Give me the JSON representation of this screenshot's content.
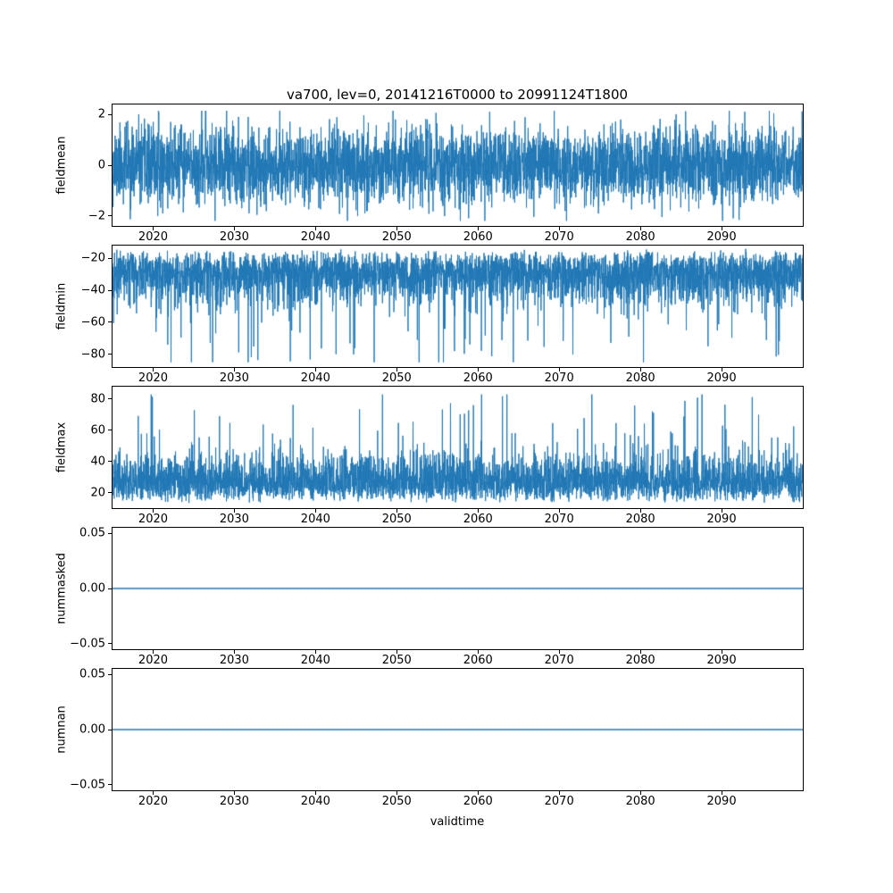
{
  "figure": {
    "title": "va700, lev=0, 20141216T0000 to 20991124T1800",
    "background": "#ffffff"
  },
  "chart_data": {
    "type": "line",
    "title": "va700, lev=0, 20141216T0000 to 20991124T1800",
    "xlabel": "validtime",
    "line_color": "#1f77b4",
    "grid": false,
    "legend": "none",
    "x": {
      "xlim": [
        2015,
        2100
      ],
      "xticks": [
        2020,
        2030,
        2040,
        2050,
        2060,
        2070,
        2080,
        2090
      ],
      "tick_decimals": 0,
      "time_span": "20141216T0000 to 20991124T1800"
    },
    "subplots": [
      {
        "name": "fieldmean",
        "ylabel": "fieldmean",
        "ylim": [
          -2.4,
          2.4
        ],
        "yticks": [
          2,
          0,
          -2
        ],
        "tick_decimals": 0,
        "series": {
          "kind": "noise",
          "seed": 11,
          "n": 4000,
          "base": 0,
          "uniform": 0,
          "tail": 0.75,
          "sign": 1,
          "two_sided": true,
          "spike_p": 0,
          "spike": [
            0,
            0
          ],
          "clip": [
            -2.2,
            2.15
          ]
        },
        "summary": {
          "typical_band": [
            -1.5,
            1.5
          ],
          "observed_min": -2.2,
          "observed_max": 2.15
        }
      },
      {
        "name": "fieldmin",
        "ylabel": "fieldmin",
        "ylim": [
          -88,
          -12
        ],
        "yticks": [
          -20,
          -40,
          -60,
          -80
        ],
        "tick_decimals": 0,
        "series": {
          "kind": "noise",
          "seed": 22,
          "n": 4000,
          "base": -14,
          "uniform": 12,
          "tail": 13,
          "sign": -1,
          "two_sided": false,
          "spike_p": 0.012,
          "spike": [
            30,
            60
          ],
          "clip": [
            -85,
            -13
          ]
        },
        "summary": {
          "typical_band": [
            -60,
            -14
          ],
          "observed_min": -84,
          "observed_max": -13
        }
      },
      {
        "name": "fieldmax",
        "ylabel": "fieldmax",
        "ylim": [
          10,
          88
        ],
        "yticks": [
          80,
          60,
          40,
          20
        ],
        "tick_decimals": 0,
        "series": {
          "kind": "noise",
          "seed": 33,
          "n": 4000,
          "base": 13,
          "uniform": 12,
          "tail": 11,
          "sign": 1,
          "two_sided": false,
          "spike_p": 0.015,
          "spike": [
            25,
            55
          ],
          "clip": [
            12,
            83
          ]
        },
        "summary": {
          "typical_band": [
            13,
            55
          ],
          "observed_min": 12,
          "observed_max": 83
        }
      },
      {
        "name": "nummasked",
        "ylabel": "nummasked",
        "ylim": [
          -0.055,
          0.055
        ],
        "yticks": [
          0.05,
          0,
          -0.05
        ],
        "tick_decimals": 2,
        "series": {
          "kind": "constant",
          "value": 0
        },
        "summary": {
          "constant_value": 0
        }
      },
      {
        "name": "numnan",
        "ylabel": "numnan",
        "ylim": [
          -0.055,
          0.055
        ],
        "yticks": [
          0.05,
          0,
          -0.05
        ],
        "tick_decimals": 2,
        "series": {
          "kind": "constant",
          "value": 0
        },
        "summary": {
          "constant_value": 0
        }
      }
    ]
  }
}
